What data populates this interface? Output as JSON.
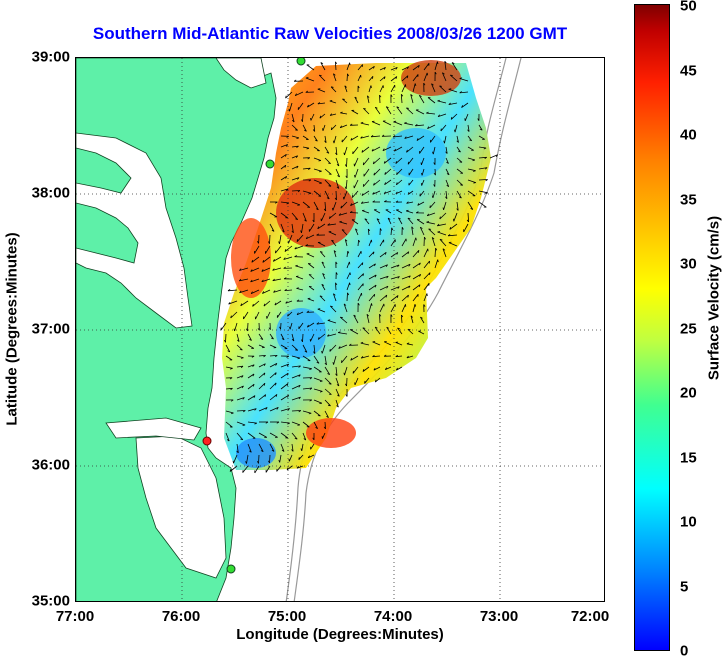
{
  "title": "Southern Mid-Atlantic Raw Velocities 2008/03/26 1200 GMT",
  "x_axis": {
    "label": "Longitude (Degrees:Minutes)",
    "ticks": [
      "77:00",
      "76:00",
      "75:00",
      "74:00",
      "73:00",
      "72:00"
    ]
  },
  "y_axis": {
    "label": "Latitude (Degrees:Minutes)",
    "ticks": [
      "39:00",
      "38:00",
      "37:00",
      "36:00",
      "35:00"
    ]
  },
  "colorbar": {
    "label": "Surface Velocity (cm/s)",
    "ticks": [
      "50",
      "45",
      "40",
      "35",
      "30",
      "25",
      "20",
      "15",
      "10",
      "5",
      "0"
    ],
    "range": [
      0,
      50
    ],
    "colormap": "jet"
  },
  "colors": {
    "land": "#5ef0a8",
    "title": "#0000ff",
    "station_green": "#33dd33",
    "station_red": "#ff2222"
  },
  "map": {
    "lon_range": [
      -77,
      -72
    ],
    "lat_range": [
      35,
      39
    ],
    "grid": "dotted"
  },
  "stations": [
    {
      "color": "green",
      "lon": -75.13,
      "lat": 39.0
    },
    {
      "color": "green",
      "lon": -75.17,
      "lat": 38.22
    },
    {
      "color": "red",
      "lon": -75.75,
      "lat": 36.18
    },
    {
      "color": "green",
      "lon": -75.52,
      "lat": 35.23
    }
  ]
}
